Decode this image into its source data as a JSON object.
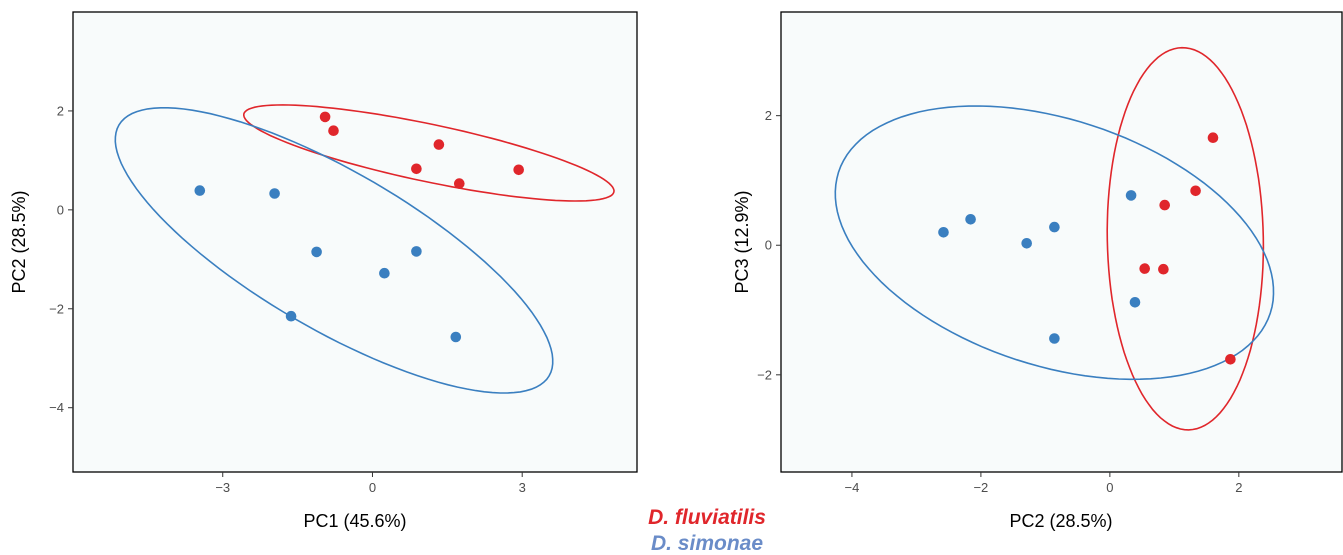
{
  "legend": [
    {
      "label": "D. fluviatilis",
      "color": "#e0262b"
    },
    {
      "label": "D. simonae",
      "color": "#6a8cc8"
    }
  ],
  "colors": {
    "fluviatilis": "#e0262b",
    "simonae": "#3a7fc0",
    "panel_bg": "#f8fbfb",
    "frame": "#000000"
  },
  "chart_data": [
    {
      "type": "scatter",
      "xlabel": "PC1 (45.6%)",
      "ylabel": "PC2 (28.5%)",
      "xlim": [
        -6.0,
        5.3
      ],
      "ylim": [
        -5.3,
        4.0
      ],
      "xticks": [
        -3,
        0,
        3
      ],
      "yticks": [
        2,
        0,
        -2,
        -4
      ],
      "grid": false,
      "series": [
        {
          "name": "D. fluviatilis",
          "color_key": "fluviatilis",
          "points": [
            [
              -0.95,
              1.88
            ],
            [
              -0.78,
              1.6
            ],
            [
              0.88,
              0.83
            ],
            [
              1.33,
              1.32
            ],
            [
              1.74,
              0.53
            ],
            [
              2.93,
              0.81
            ]
          ],
          "ellipse": {
            "center": [
              1.13,
              1.15
            ],
            "semi_axes": [
              3.79,
              0.58
            ],
            "angle_deg": -12.0
          }
        },
        {
          "name": "D. simonae",
          "color_key": "simonae",
          "points": [
            [
              -3.46,
              0.39
            ],
            [
              -1.96,
              0.33
            ],
            [
              -1.12,
              -0.85
            ],
            [
              -1.63,
              -2.15
            ],
            [
              0.24,
              -1.28
            ],
            [
              0.88,
              -0.84
            ],
            [
              1.67,
              -2.57
            ]
          ],
          "ellipse": {
            "center": [
              -0.77,
              -0.82
            ],
            "semi_axes": [
              5.0,
              1.59
            ],
            "angle_deg": -30.5
          }
        }
      ]
    },
    {
      "type": "scatter",
      "xlabel": "PC2 (28.5%)",
      "ylabel": "PC3 (12.9%)",
      "xlim": [
        -5.1,
        3.6
      ],
      "ylim": [
        -3.5,
        3.6
      ],
      "xticks": [
        -4,
        -2,
        0,
        2
      ],
      "yticks": [
        2,
        0,
        -2
      ],
      "grid": false,
      "series": [
        {
          "name": "D. fluviatilis",
          "color_key": "fluviatilis",
          "points": [
            [
              1.6,
              1.66
            ],
            [
              1.33,
              0.84
            ],
            [
              0.85,
              0.62
            ],
            [
              0.54,
              -0.36
            ],
            [
              0.83,
              -0.37
            ],
            [
              1.87,
              -1.76
            ]
          ],
          "ellipse": {
            "center": [
              1.17,
              0.1
            ],
            "semi_axes": [
              2.95,
              1.21
            ],
            "angle_deg": 91.0
          }
        },
        {
          "name": "D. simonae",
          "color_key": "simonae",
          "points": [
            [
              -2.58,
              0.2
            ],
            [
              -2.16,
              0.4
            ],
            [
              -1.29,
              0.03
            ],
            [
              -0.86,
              0.28
            ],
            [
              0.33,
              0.77
            ],
            [
              0.39,
              -0.88
            ],
            [
              -0.86,
              -1.44
            ]
          ],
          "ellipse": {
            "center": [
              -0.86,
              0.04
            ],
            "semi_axes": [
              3.52,
              1.9
            ],
            "angle_deg": -18.0
          }
        }
      ]
    }
  ]
}
